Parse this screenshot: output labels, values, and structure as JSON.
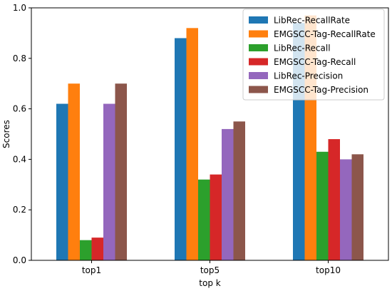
{
  "chart_data": {
    "type": "bar",
    "title": "",
    "xlabel": "top k",
    "ylabel": "Scores",
    "ylim": [
      0,
      1.0
    ],
    "yticks": [
      "0.0",
      "0.2",
      "0.4",
      "0.6",
      "0.8",
      "1.0"
    ],
    "categories": [
      "top1",
      "top5",
      "top10"
    ],
    "grid": false,
    "legend_position": "top-right",
    "series": [
      {
        "name": "LibRec-RecallRate",
        "color": "#1f77b4",
        "values": [
          0.62,
          0.88,
          0.94
        ]
      },
      {
        "name": "EMGSCC-Tag-RecallRate",
        "color": "#ff7f0e",
        "values": [
          0.7,
          0.92,
          0.97
        ]
      },
      {
        "name": "LibRec-Recall",
        "color": "#2ca02c",
        "values": [
          0.08,
          0.32,
          0.43
        ]
      },
      {
        "name": "EMGSCC-Tag-Recall",
        "color": "#d62728",
        "values": [
          0.09,
          0.34,
          0.48
        ]
      },
      {
        "name": "LibRec-Precision",
        "color": "#9467bd",
        "values": [
          0.62,
          0.52,
          0.4
        ]
      },
      {
        "name": "EMGSCC-Tag-Precision",
        "color": "#8c564b",
        "values": [
          0.7,
          0.55,
          0.42
        ]
      }
    ]
  }
}
